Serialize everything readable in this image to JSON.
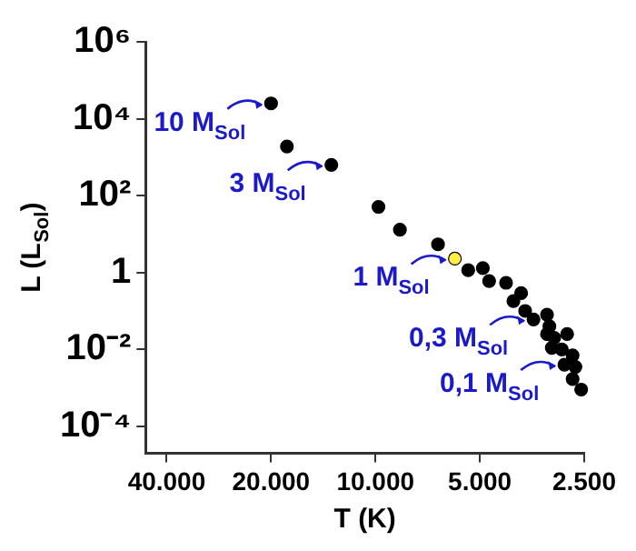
{
  "chart_data": {
    "type": "scatter",
    "xlabel": "T (K)",
    "ylabel": "L (L$_{Sol}$)",
    "log": "xy",
    "marker": "circle",
    "xlim": [
      46000,
      2500
    ],
    "xticks": [
      {
        "value": 40000,
        "label": "40.000"
      },
      {
        "value": 20000,
        "label": "20.000"
      },
      {
        "value": 10000,
        "label": "10.000"
      },
      {
        "value": 5000,
        "label": "5.000"
      },
      {
        "value": 2500,
        "label": "2.500"
      }
    ],
    "ylim": [
      2e-05,
      1000000
    ],
    "yticks": [
      {
        "value": 0.0001,
        "label": "10⁻⁴"
      },
      {
        "value": 0.01,
        "label": "10⁻²"
      },
      1,
      {
        "value": 100,
        "label": "10²"
      },
      {
        "value": 10000,
        "label": "10⁴"
      },
      {
        "value": 1000000,
        "label": "10⁶"
      }
    ],
    "series": [
      {
        "color": "#000000",
        "x": [
          20000,
          18000,
          13400,
          9800,
          8500,
          6600,
          5900,
          5400,
          4900,
          4700,
          4200,
          4000,
          3800,
          3700,
          3500,
          3200,
          3150,
          3200,
          3050,
          2800,
          3100,
          2900,
          2700,
          2850,
          2650,
          2700,
          2550
        ],
        "values": [
          25000,
          1900,
          630,
          51,
          13,
          5.4,
          2.3,
          1.15,
          1.3,
          0.6,
          0.54,
          0.18,
          0.29,
          0.1,
          0.06,
          0.08,
          0.04,
          0.025,
          0.02,
          0.025,
          0.011,
          0.01,
          0.007,
          0.004,
          0.0035,
          0.0017,
          0.0009
        ],
        "colors": [
          "#000000",
          "#000000",
          "#000000",
          "#000000",
          "#000000",
          "#000000",
          "#ffee44",
          "#000000",
          "#000000",
          "#000000",
          "#000000",
          "#000000",
          "#000000",
          "#000000",
          "#000000",
          "#000000",
          "#000000",
          "#000000",
          "#000000",
          "#000000",
          "#000000",
          "#000000",
          "#000000",
          "#000000",
          "#000000",
          "#000000",
          "#000000"
        ]
      }
    ],
    "annotations": [
      {
        "text": "10 M$_{Sol}$",
        "x": 20000,
        "y": 25000
      },
      {
        "text": "3 M$_{Sol}$",
        "x": 13400,
        "y": 630
      },
      {
        "text": "1 M$_{Sol}$",
        "x": 5900,
        "y": 2.3
      },
      {
        "text": "0,3 M$_{Sol}$",
        "x": 3500,
        "y": 0.06
      },
      {
        "text": "0,1 M$_{Sol}$",
        "x": 2850,
        "y": 0.004
      }
    ]
  }
}
